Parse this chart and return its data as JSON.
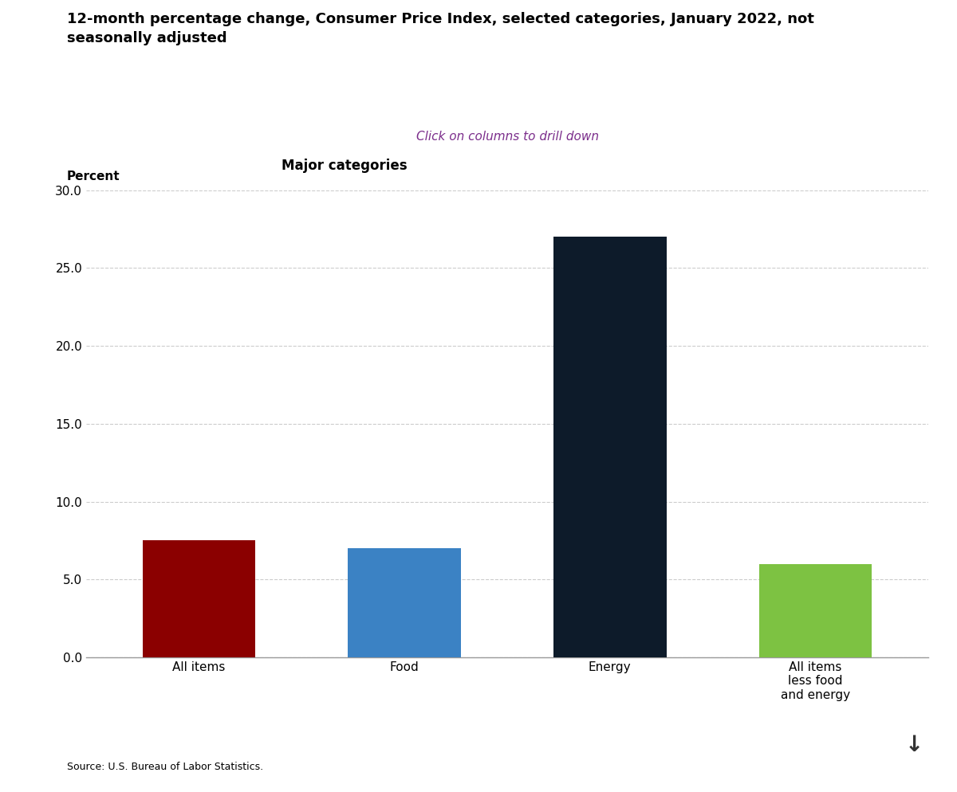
{
  "title": "12-month percentage change, Consumer Price Index, selected categories, January 2022, not\nseasonally adjusted",
  "subtitle": "Click on columns to drill down",
  "subtitle_color": "#7B2D8B",
  "axis_label": "Major categories",
  "ylabel": "Percent",
  "categories": [
    "All items",
    "Food",
    "Energy",
    "All items\nless food\nand energy"
  ],
  "values": [
    7.5,
    7.0,
    27.0,
    6.0
  ],
  "bar_colors": [
    "#8B0000",
    "#3B82C4",
    "#0D1B2A",
    "#7DC242"
  ],
  "ylim": [
    0,
    30.0
  ],
  "yticks": [
    0.0,
    5.0,
    10.0,
    15.0,
    20.0,
    25.0,
    30.0
  ],
  "source": "Source: U.S. Bureau of Labor Statistics.",
  "background_color": "#FFFFFF",
  "grid_color": "#CCCCCC",
  "title_fontsize": 13,
  "subtitle_fontsize": 11,
  "ylabel_fontsize": 11,
  "axis_label_fontsize": 12,
  "tick_fontsize": 11,
  "source_fontsize": 9,
  "bar_width": 0.55
}
